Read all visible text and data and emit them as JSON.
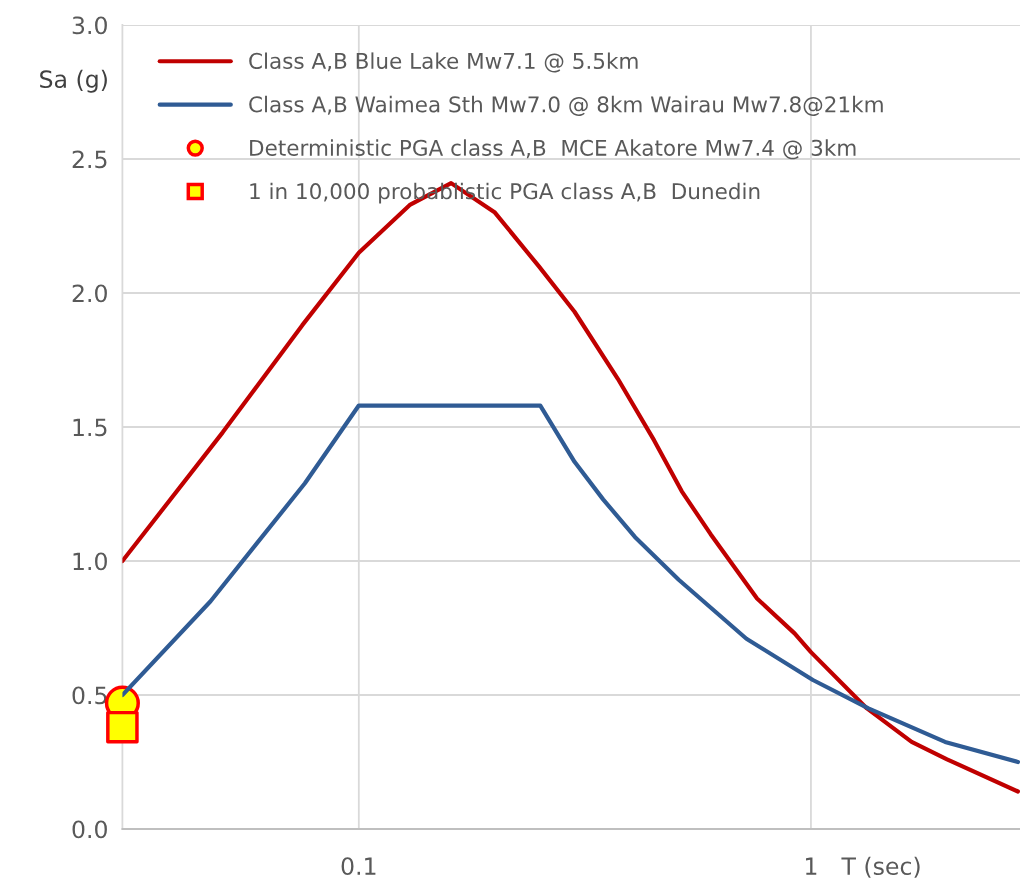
{
  "chart_data": {
    "type": "line",
    "xlabel": "T (sec)",
    "ylabel": "Sa (g)",
    "log": "x",
    "xlim": [
      0.03,
      2.9
    ],
    "xticks": [
      0.1,
      1
    ],
    "ylim": [
      0,
      3
    ],
    "yticks": [
      {
        "value": 0,
        "label": "0.0"
      },
      {
        "value": 0.5,
        "label": "0.5"
      },
      {
        "value": 1,
        "label": "1.0"
      },
      {
        "value": 1.5,
        "label": "1.5"
      },
      {
        "value": 2,
        "label": "2.0"
      },
      {
        "value": 2.5,
        "label": "2.5"
      },
      {
        "value": 3,
        "label": "3.0"
      }
    ],
    "grid": true,
    "legend": "top left",
    "series": [
      {
        "name": "Class A,B Blue Lake Mw7.1 @ 5.5km",
        "color": "#c00000",
        "marker": "none",
        "x": [
          0.03,
          0.05,
          0.075,
          0.1,
          0.13,
          0.16,
          0.2,
          0.25,
          0.3,
          0.374,
          0.45,
          0.518,
          0.6,
          0.76,
          0.92,
          1.0,
          1.33,
          1.67,
          2.0,
          2.87
        ],
        "values": [
          1.0,
          1.48,
          1.88,
          2.15,
          2.33,
          2.41,
          2.3,
          2.1,
          1.93,
          1.68,
          1.45,
          1.26,
          1.1,
          0.86,
          0.73,
          0.66,
          0.45,
          0.325,
          0.26,
          0.14
        ]
      },
      {
        "name": "Class A,B Waimea Sth Mw7.0 @ 8km Wairau Mw7.8@21km",
        "color": "#2f5b94",
        "marker": "none",
        "x": [
          0.03,
          0.047,
          0.076,
          0.1,
          0.252,
          0.3,
          0.347,
          0.408,
          0.51,
          0.72,
          1.01,
          1.34,
          1.98,
          2.87
        ],
        "values": [
          0.5,
          0.85,
          1.29,
          1.58,
          1.58,
          1.37,
          1.23,
          1.09,
          0.93,
          0.71,
          0.556,
          0.45,
          0.325,
          0.25
        ]
      },
      {
        "name": "Deterministic PGA class A,B  MCE Akatore Mw7.4 @ 3km",
        "color": "#ffff00",
        "type": "scatter",
        "marker": "circle",
        "x": [
          0.03
        ],
        "values": [
          0.47
        ]
      },
      {
        "name": "1 in 10,000 probablistic PGA class A,B  Dunedin",
        "color": "#ffff00",
        "type": "scatter",
        "marker": "square",
        "x": [
          0.03
        ],
        "values": [
          0.38
        ]
      }
    ]
  }
}
